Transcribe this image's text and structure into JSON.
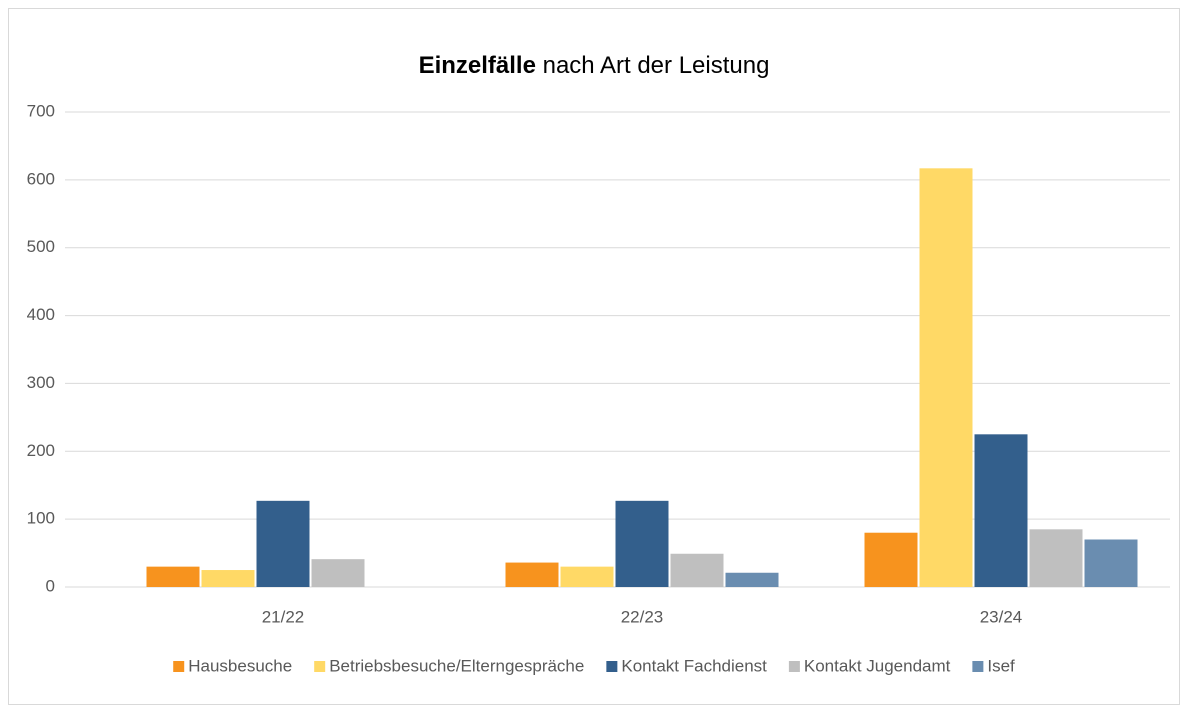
{
  "chart_data": {
    "type": "bar",
    "title": [
      "Einzelfälle",
      "nach Art der Leistung"
    ],
    "categories": [
      "21/22",
      "22/23",
      "23/24"
    ],
    "series": [
      {
        "name": "Hausbesuche",
        "color": "#f7931e",
        "values": [
          30,
          36,
          80
        ]
      },
      {
        "name": "Betriebsbesuche/Elterngespräche",
        "color": "#ffd966",
        "values": [
          25,
          30,
          617
        ]
      },
      {
        "name": "Kontakt Fachdienst",
        "color": "#335f8c",
        "values": [
          127,
          127,
          225
        ]
      },
      {
        "name": "Kontakt Jugendamt",
        "color": "#bfbfbf",
        "values": [
          41,
          49,
          85
        ]
      },
      {
        "name": "Isef",
        "color": "#6a8db0",
        "values": [
          null,
          21,
          70
        ]
      }
    ],
    "ylim": [
      0,
      700
    ],
    "yticks": [
      0,
      100,
      200,
      300,
      400,
      500,
      600,
      700
    ],
    "grid": true,
    "legend": "bottom"
  }
}
